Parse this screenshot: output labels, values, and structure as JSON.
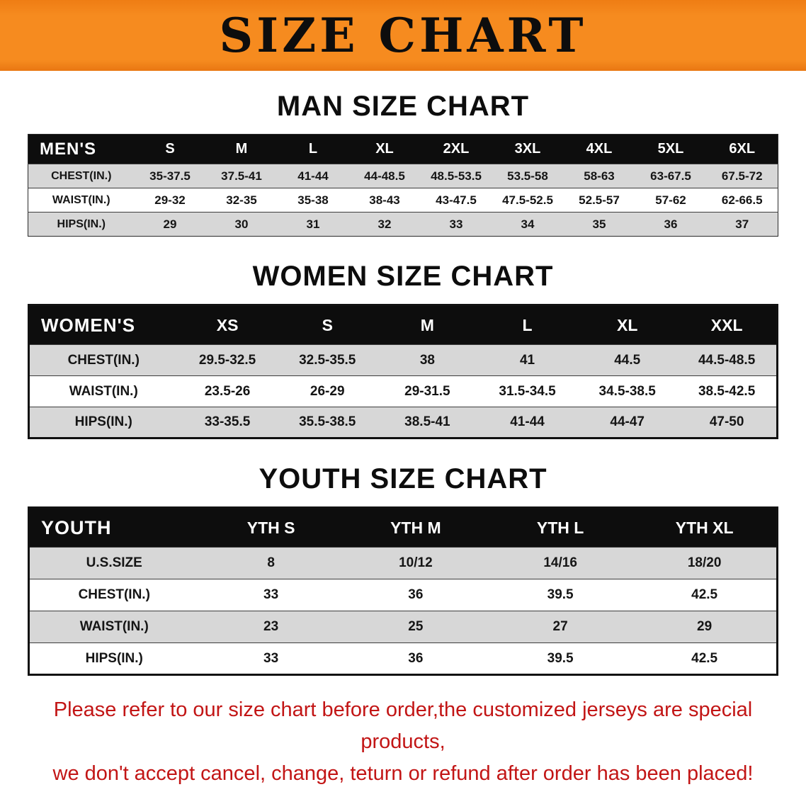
{
  "banner": {
    "title": "SIZE CHART",
    "bg_color": "#f68b1f",
    "text_color": "#0d0d0d"
  },
  "sections": [
    {
      "heading": "MAN SIZE CHART",
      "table": {
        "header": [
          "MEN'S",
          "S",
          "M",
          "L",
          "XL",
          "2XL",
          "3XL",
          "4XL",
          "5XL",
          "6XL"
        ],
        "rows": [
          [
            "CHEST(IN.)",
            "35-37.5",
            "37.5-41",
            "41-44",
            "44-48.5",
            "48.5-53.5",
            "53.5-58",
            "58-63",
            "63-67.5",
            "67.5-72"
          ],
          [
            "WAIST(IN.)",
            "29-32",
            "32-35",
            "35-38",
            "38-43",
            "43-47.5",
            "47.5-52.5",
            "52.5-57",
            "57-62",
            "62-66.5"
          ],
          [
            "HIPS(IN.)",
            "29",
            "30",
            "31",
            "32",
            "33",
            "34",
            "35",
            "36",
            "37"
          ]
        ]
      }
    },
    {
      "heading": "WOMEN SIZE CHART",
      "table": {
        "header": [
          "WOMEN'S",
          "XS",
          "S",
          "M",
          "L",
          "XL",
          "XXL"
        ],
        "rows": [
          [
            "CHEST(IN.)",
            "29.5-32.5",
            "32.5-35.5",
            "38",
            "41",
            "44.5",
            "44.5-48.5"
          ],
          [
            "WAIST(IN.)",
            "23.5-26",
            "26-29",
            "29-31.5",
            "31.5-34.5",
            "34.5-38.5",
            "38.5-42.5"
          ],
          [
            "HIPS(IN.)",
            "33-35.5",
            "35.5-38.5",
            "38.5-41",
            "41-44",
            "44-47",
            "47-50"
          ]
        ]
      }
    },
    {
      "heading": "YOUTH SIZE CHART",
      "table": {
        "header": [
          "YOUTH",
          "YTH S",
          "YTH M",
          "YTH L",
          "YTH XL"
        ],
        "rows": [
          [
            "U.S.SIZE",
            "8",
            "10/12",
            "14/16",
            "18/20"
          ],
          [
            "CHEST(IN.)",
            "33",
            "36",
            "39.5",
            "42.5"
          ],
          [
            "WAIST(IN.)",
            "23",
            "25",
            "27",
            "29"
          ],
          [
            "HIPS(IN.)",
            "33",
            "36",
            "39.5",
            "42.5"
          ]
        ]
      }
    }
  ],
  "footer": {
    "line1": "Please refer to our size chart before order,the customized jerseys are special products,",
    "line2": "we don't accept cancel, change, teturn or refund after order has been placed!",
    "text_color": "#c21515"
  }
}
